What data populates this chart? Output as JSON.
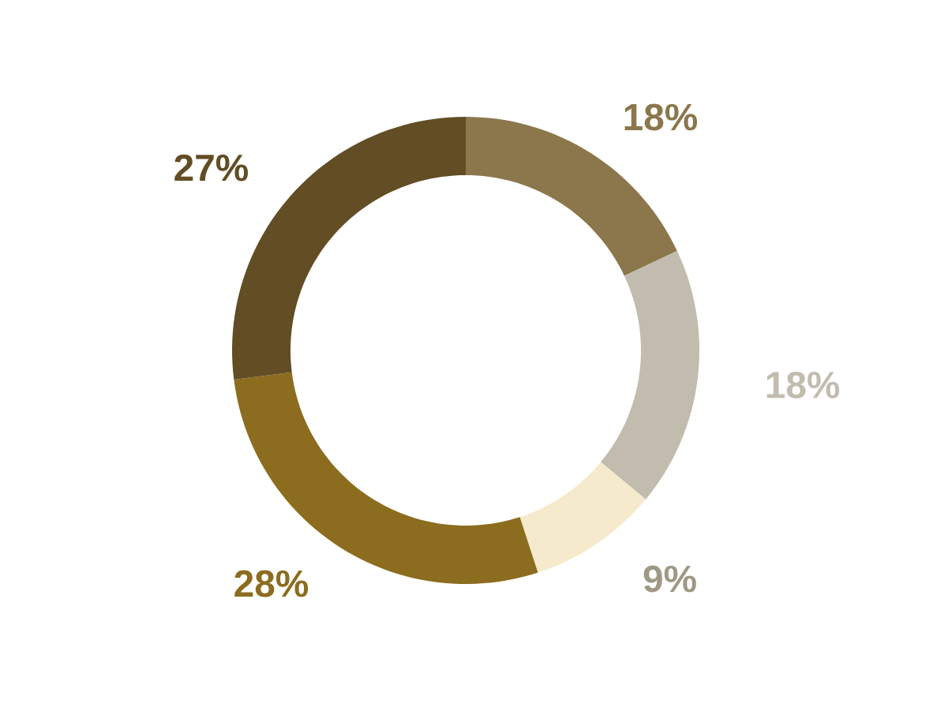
{
  "chart_data": {
    "type": "donut",
    "categories": [
      null,
      null,
      null,
      null,
      null
    ],
    "values": [
      18,
      18,
      9,
      28,
      27
    ],
    "colors": [
      "#8b774b",
      "#c1bcae",
      "#f5eacb",
      "#8c6c1e",
      "#624d24"
    ],
    "value_labels": [
      "18%",
      "18%",
      "9%",
      "28%",
      "27%"
    ]
  }
}
